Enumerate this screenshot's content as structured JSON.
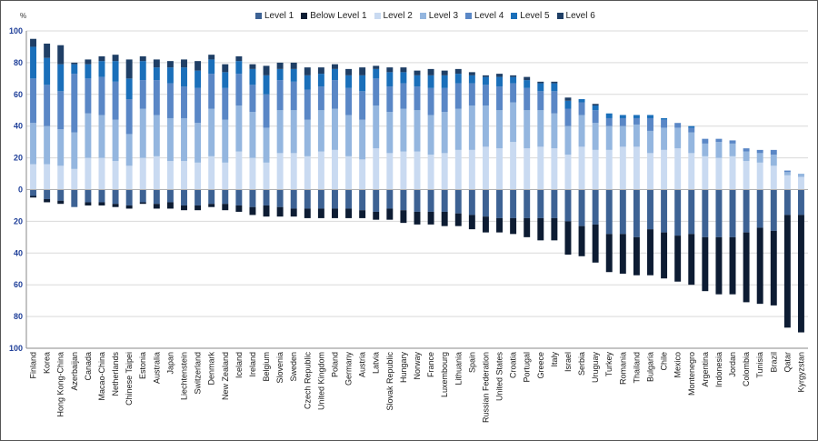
{
  "chart_data": {
    "type": "bar",
    "stacked": "diverging",
    "y_unit_label": "%",
    "ylim": [
      -100,
      100
    ],
    "yticks": [
      100,
      80,
      60,
      40,
      20,
      0,
      20,
      40,
      60,
      80,
      100
    ],
    "yticks_values": [
      100,
      80,
      60,
      40,
      20,
      0,
      -20,
      -40,
      -60,
      -80,
      -100
    ],
    "grid": true,
    "legend_position": "top",
    "legend_order": [
      "Level 1",
      "Below Level 1",
      "Level 2",
      "Level 3",
      "Level 4",
      "Level 5",
      "Level 6"
    ],
    "colors": {
      "Below Level 1": "#0d1c33",
      "Level 1": "#3d6294",
      "Level 2": "#c9daf1",
      "Level 3": "#94b6df",
      "Level 4": "#5a87c6",
      "Level 5": "#1a6fba",
      "Level 6": "#1f3f66"
    },
    "categories": [
      "Finland",
      "Korea",
      "Hong Kong-China",
      "Azerbaijan",
      "Canada",
      "Macao-China",
      "Netherlands",
      "Chinese Taipei",
      "Estonia",
      "Australia",
      "Japan",
      "Liechtenstein",
      "Switzerland",
      "Denmark",
      "New Zealand",
      "Iceland",
      "Ireland",
      "Belgium",
      "Slovenia",
      "Sweden",
      "Czech Republic",
      "United Kingdom",
      "Poland",
      "Germany",
      "Austria",
      "Latvia",
      "Slovak Republic",
      "Hungary",
      "Norway",
      "France",
      "Luxembourg",
      "Lithuania",
      "Spain",
      "Russian Federation",
      "United States",
      "Croatia",
      "Portugal",
      "Greece",
      "Italy",
      "Israel",
      "Serbia",
      "Uruguay",
      "Turkey",
      "Romania",
      "Thailand",
      "Bulgaria",
      "Chile",
      "Mexico",
      "Montenegro",
      "Argentina",
      "Indonesia",
      "Jordan",
      "Colombia",
      "Tunisia",
      "Brazil",
      "Qatar",
      "Kyrgyzstan"
    ],
    "series": [
      {
        "name": "Below Level 1",
        "direction": "negative",
        "values": [
          1,
          2,
          2,
          0,
          2,
          2,
          2,
          2,
          1,
          3,
          4,
          3,
          3,
          2,
          4,
          4,
          5,
          7,
          6,
          5,
          6,
          6,
          6,
          6,
          5,
          5,
          7,
          8,
          8,
          8,
          9,
          8,
          9,
          10,
          9,
          10,
          12,
          14,
          14,
          21,
          19,
          24,
          24,
          25,
          24,
          29,
          29,
          29,
          32,
          34,
          36,
          36,
          44,
          48,
          47,
          71,
          74
        ]
      },
      {
        "name": "Level 1",
        "direction": "negative",
        "values": [
          4,
          6,
          7,
          11,
          8,
          8,
          9,
          10,
          8,
          9,
          8,
          10,
          10,
          9,
          9,
          10,
          11,
          10,
          11,
          12,
          12,
          12,
          12,
          12,
          13,
          14,
          12,
          13,
          14,
          14,
          14,
          15,
          16,
          17,
          18,
          18,
          18,
          18,
          18,
          20,
          23,
          22,
          28,
          28,
          30,
          25,
          27,
          29,
          28,
          30,
          30,
          30,
          27,
          24,
          26,
          16,
          16
        ]
      },
      {
        "name": "Level 2",
        "direction": "positive",
        "values": [
          16,
          16,
          15,
          13,
          20,
          20,
          18,
          15,
          20,
          21,
          18,
          18,
          17,
          21,
          17,
          24,
          20,
          17,
          23,
          23,
          21,
          24,
          25,
          21,
          19,
          26,
          23,
          24,
          24,
          22,
          23,
          25,
          25,
          27,
          26,
          30,
          26,
          27,
          26,
          22,
          27,
          25,
          25,
          27,
          27,
          23,
          25,
          26,
          23,
          21,
          20,
          21,
          18,
          17,
          15,
          9,
          8
        ]
      },
      {
        "name": "Level 3",
        "direction": "positive",
        "values": [
          26,
          24,
          23,
          23,
          28,
          27,
          26,
          20,
          31,
          26,
          27,
          27,
          25,
          30,
          27,
          29,
          29,
          22,
          27,
          27,
          23,
          26,
          26,
          26,
          25,
          27,
          26,
          27,
          26,
          25,
          26,
          26,
          28,
          26,
          24,
          25,
          24,
          23,
          22,
          18,
          20,
          17,
          15,
          13,
          14,
          14,
          14,
          13,
          13,
          8,
          10,
          8,
          6,
          6,
          7,
          2,
          2
        ]
      },
      {
        "name": "Level 4",
        "direction": "positive",
        "values": [
          28,
          26,
          24,
          37,
          22,
          24,
          24,
          22,
          18,
          22,
          22,
          20,
          22,
          22,
          20,
          20,
          17,
          21,
          19,
          18,
          19,
          15,
          18,
          17,
          18,
          17,
          16,
          16,
          15,
          17,
          15,
          16,
          14,
          13,
          15,
          12,
          14,
          12,
          14,
          11,
          8,
          8,
          5,
          5,
          4,
          8,
          5,
          3,
          3,
          3,
          2,
          2,
          2,
          2,
          3,
          1,
          0
        ]
      },
      {
        "name": "Level 5",
        "direction": "positive",
        "values": [
          20,
          17,
          17,
          6,
          9,
          10,
          13,
          13,
          12,
          8,
          10,
          12,
          11,
          9,
          10,
          8,
          10,
          12,
          7,
          8,
          9,
          8,
          7,
          8,
          10,
          6,
          9,
          7,
          7,
          8,
          8,
          6,
          5,
          5,
          6,
          4,
          5,
          5,
          5,
          5,
          2,
          3,
          3,
          2,
          2,
          2,
          1,
          0,
          1,
          0,
          0,
          0,
          0,
          0,
          0,
          0,
          0
        ]
      },
      {
        "name": "Level 6",
        "direction": "positive",
        "values": [
          5,
          9,
          12,
          1,
          3,
          3,
          4,
          12,
          3,
          5,
          4,
          5,
          6,
          3,
          5,
          3,
          3,
          6,
          4,
          4,
          5,
          4,
          3,
          4,
          5,
          2,
          3,
          3,
          3,
          4,
          3,
          3,
          2,
          1,
          2,
          1,
          2,
          1,
          1,
          2,
          0,
          1,
          0,
          0,
          0,
          0,
          0,
          0,
          0,
          0,
          0,
          0,
          0,
          0,
          0,
          0,
          0
        ]
      }
    ]
  }
}
